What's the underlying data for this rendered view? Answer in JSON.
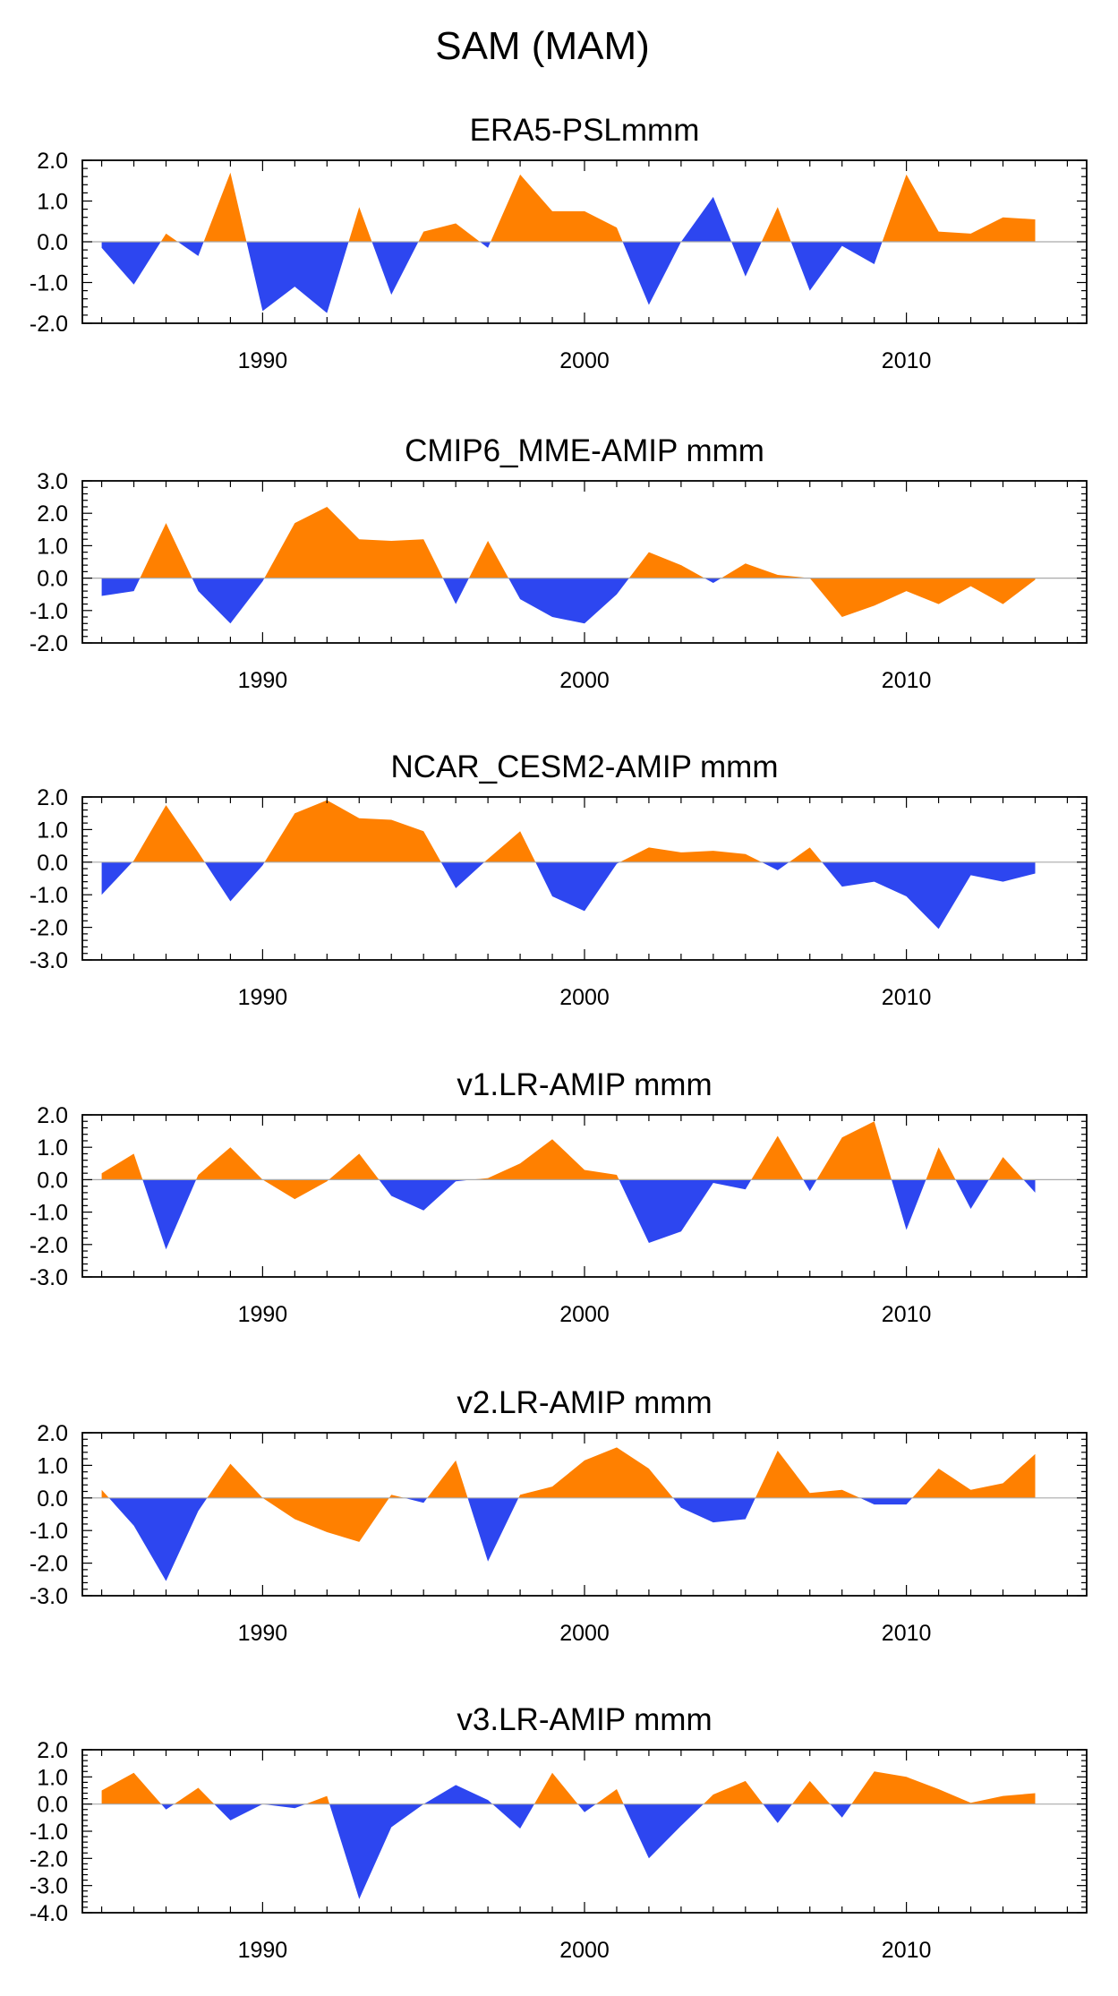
{
  "figure": {
    "title": "SAM (MAM)"
  },
  "colors": {
    "positive": "#ff8000",
    "negative": "#2d46f0",
    "axis": "#000000",
    "zero_line": "#aaaaaa"
  },
  "chart_data": [
    {
      "type": "area",
      "title": "ERA5-PSLmmm",
      "xlabel": "",
      "ylabel": "",
      "x": [
        1985,
        1986,
        1987,
        1988,
        1989,
        1990,
        1991,
        1992,
        1993,
        1994,
        1995,
        1996,
        1997,
        1998,
        1999,
        2000,
        2001,
        2002,
        2003,
        2004,
        2005,
        2006,
        2007,
        2008,
        2009,
        2010,
        2011,
        2012,
        2013,
        2014
      ],
      "values": [
        -0.15,
        -1.05,
        0.2,
        -0.35,
        1.7,
        -1.7,
        -1.1,
        -1.75,
        0.85,
        -1.3,
        0.25,
        0.45,
        -0.15,
        1.65,
        0.75,
        0.75,
        0.35,
        -1.55,
        0.0,
        1.1,
        -0.85,
        0.85,
        -1.2,
        -0.1,
        -0.55,
        1.65,
        0.25,
        0.2,
        0.6,
        0.55
      ],
      "ylim": [
        -2.0,
        2.0
      ],
      "yticks": [
        "2.0",
        "1.0",
        "0.0",
        "-1.0",
        "-2.0"
      ],
      "xticks": [
        "1990",
        "2000",
        "2010"
      ],
      "grid": false
    },
    {
      "type": "area",
      "title": "CMIP6_MME-AMIP  mmm",
      "xlabel": "",
      "ylabel": "",
      "x": [
        1985,
        1986,
        1987,
        1988,
        1989,
        1990,
        1991,
        1992,
        1993,
        1994,
        1995,
        1996,
        1997,
        1998,
        1999,
        2000,
        2001,
        2002,
        2003,
        2004,
        2005,
        2006,
        2007,
        2008,
        2009,
        2010,
        2011,
        2012,
        2013,
        2014
      ],
      "values": [
        -0.55,
        -0.4,
        1.7,
        -0.4,
        -1.4,
        -0.1,
        1.7,
        2.2,
        1.2,
        1.15,
        1.2,
        -0.8,
        1.15,
        -0.65,
        -1.2,
        -1.4,
        -0.5,
        0.8,
        0.4,
        -0.15,
        0.45,
        0.1,
        0.0,
        -1.2,
        -0.85,
        -0.4,
        -0.8,
        -0.25,
        -0.8,
        -0.05
      ],
      "ylim": [
        -2.0,
        3.0
      ],
      "yticks": [
        "3.0",
        "2.0",
        "1.0",
        "0.0",
        "-1.0",
        "-2.0"
      ],
      "xticks": [
        "1990",
        "2000",
        "2010"
      ],
      "grid": false
    },
    {
      "type": "area",
      "title": "NCAR_CESM2-AMIP  mmm",
      "xlabel": "",
      "ylabel": "",
      "x": [
        1985,
        1986,
        1987,
        1988,
        1989,
        1990,
        1991,
        1992,
        1993,
        1994,
        1995,
        1996,
        1997,
        1998,
        1999,
        2000,
        2001,
        2002,
        2003,
        2004,
        2005,
        2006,
        2007,
        2008,
        2009,
        2010,
        2011,
        2012,
        2013,
        2014
      ],
      "values": [
        -1.0,
        0.05,
        1.75,
        0.3,
        -1.2,
        -0.1,
        1.5,
        1.9,
        1.35,
        1.3,
        0.95,
        -0.8,
        0.1,
        0.95,
        -1.05,
        -1.5,
        -0.05,
        0.45,
        0.3,
        0.35,
        0.25,
        -0.25,
        0.45,
        -0.75,
        -0.6,
        -1.05,
        -2.05,
        -0.4,
        -0.6,
        -0.35
      ],
      "ylim": [
        -3.0,
        2.0
      ],
      "yticks": [
        "2.0",
        "1.0",
        "0.0",
        "-1.0",
        "-2.0",
        "-3.0"
      ],
      "xticks": [
        "1990",
        "2000",
        "2010"
      ],
      "grid": false
    },
    {
      "type": "area",
      "title": "v1.LR-AMIP  mmm",
      "xlabel": "",
      "ylabel": "",
      "x": [
        1985,
        1986,
        1987,
        1988,
        1989,
        1990,
        1991,
        1992,
        1993,
        1994,
        1995,
        1996,
        1997,
        1998,
        1999,
        2000,
        2001,
        2002,
        2003,
        2004,
        2005,
        2006,
        2007,
        2008,
        2009,
        2010,
        2011,
        2012,
        2013,
        2014
      ],
      "values": [
        0.2,
        0.8,
        -2.15,
        0.15,
        1.0,
        0.0,
        -0.6,
        -0.05,
        0.8,
        -0.5,
        -0.95,
        -0.05,
        0.05,
        0.5,
        1.25,
        0.3,
        0.15,
        -1.95,
        -1.6,
        -0.1,
        -0.3,
        1.35,
        -0.35,
        1.3,
        1.8,
        -1.55,
        1.0,
        -0.9,
        0.7,
        -0.4
      ],
      "ylim": [
        -3.0,
        2.0
      ],
      "yticks": [
        "2.0",
        "1.0",
        "0.0",
        "-1.0",
        "-2.0",
        "-3.0"
      ],
      "xticks": [
        "1990",
        "2000",
        "2010"
      ],
      "grid": false
    },
    {
      "type": "area",
      "title": "v2.LR-AMIP  mmm",
      "xlabel": "",
      "ylabel": "",
      "x": [
        1985,
        1986,
        1987,
        1988,
        1989,
        1990,
        1991,
        1992,
        1993,
        1994,
        1995,
        1996,
        1997,
        1998,
        1999,
        2000,
        2001,
        2002,
        2003,
        2004,
        2005,
        2006,
        2007,
        2008,
        2009,
        2010,
        2011,
        2012,
        2013,
        2014
      ],
      "values": [
        0.25,
        -0.85,
        -2.55,
        -0.4,
        1.05,
        0.0,
        -0.65,
        -1.05,
        -1.35,
        0.1,
        -0.15,
        1.15,
        -1.95,
        0.1,
        0.35,
        1.15,
        1.55,
        0.9,
        -0.3,
        -0.75,
        -0.65,
        1.45,
        0.15,
        0.25,
        -0.2,
        -0.2,
        0.9,
        0.25,
        0.45,
        1.35
      ],
      "ylim": [
        -3.0,
        2.0
      ],
      "yticks": [
        "2.0",
        "1.0",
        "0.0",
        "-1.0",
        "-2.0",
        "-3.0"
      ],
      "xticks": [
        "1990",
        "2000",
        "2010"
      ],
      "grid": false
    },
    {
      "type": "area",
      "title": "v3.LR-AMIP  mmm",
      "xlabel": "",
      "ylabel": "",
      "x": [
        1985,
        1986,
        1987,
        1988,
        1989,
        1990,
        1991,
        1992,
        1993,
        1994,
        1995,
        1996,
        1997,
        1998,
        1999,
        2000,
        2001,
        2002,
        2003,
        2004,
        2005,
        2006,
        2007,
        2008,
        2009,
        2010,
        2011,
        2012,
        2013,
        2014
      ],
      "values": [
        0.5,
        1.15,
        -0.2,
        0.6,
        -0.6,
        0.0,
        -0.15,
        0.3,
        -3.5,
        -0.85,
        0.0,
        0.7,
        0.15,
        -0.9,
        1.15,
        -0.3,
        0.55,
        -2.0,
        -0.8,
        0.35,
        0.85,
        -0.7,
        0.85,
        -0.5,
        1.2,
        1.0,
        0.55,
        0.05,
        0.3,
        0.4
      ],
      "ylim": [
        -4.0,
        2.0
      ],
      "yticks": [
        "2.0",
        "1.0",
        "0.0",
        "-1.0",
        "-2.0",
        "-3.0",
        "-4.0"
      ],
      "xticks": [
        "1990",
        "2000",
        "2010"
      ],
      "grid": false
    }
  ]
}
